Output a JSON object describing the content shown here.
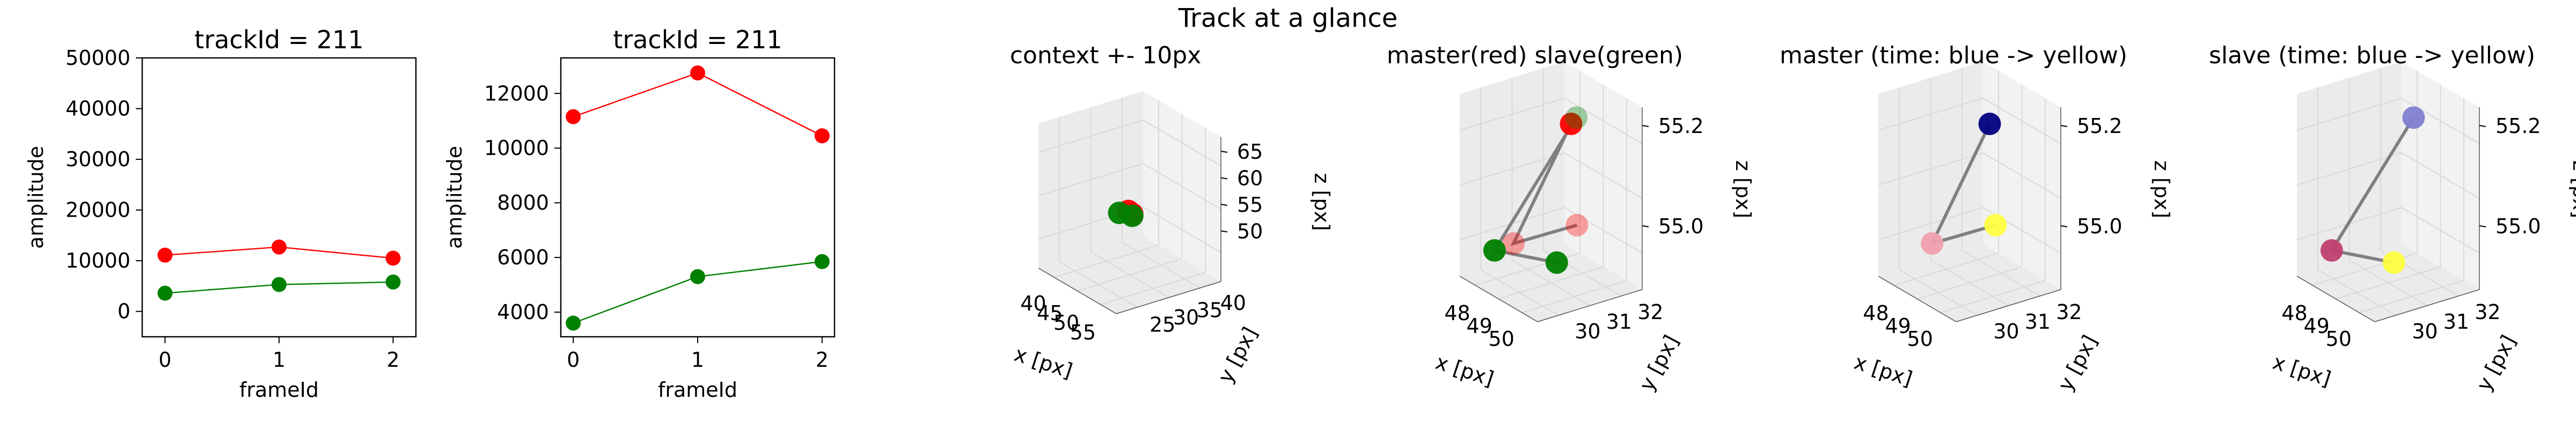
{
  "figure": {
    "suptitle": "Track at a glance"
  },
  "colors": {
    "master": "#ff0000",
    "slave": "#008000",
    "connector": "#808080",
    "pane": "#f2f2f2",
    "pane_side": "#ebebeb",
    "grid": "#d9d9d9",
    "time_start": "#00007f",
    "time_end": "#ffff3f"
  },
  "chart_data": [
    {
      "type": "line",
      "title": "trackId = 211",
      "xlabel": "frameId",
      "ylabel": "amplitude",
      "x": [
        0,
        1,
        2
      ],
      "xlim": [
        -0.2,
        2.2
      ],
      "ylim": [
        -5000,
        50000
      ],
      "yticks": [
        0,
        10000,
        20000,
        30000,
        40000,
        50000
      ],
      "xticks": [
        0,
        1,
        2
      ],
      "series": [
        {
          "color": "#ff0000",
          "values": [
            11100,
            12700,
            10500
          ]
        },
        {
          "color": "#008000",
          "values": [
            3600,
            5300,
            5800
          ]
        }
      ],
      "grid": false
    },
    {
      "type": "line",
      "title": "trackId = 211",
      "xlabel": "frameId",
      "ylabel": "amplitude",
      "x": [
        0,
        1,
        2
      ],
      "xlim": [
        -0.1,
        2.1
      ],
      "ylim": [
        3100,
        13300
      ],
      "yticks": [
        4000,
        6000,
        8000,
        10000,
        12000
      ],
      "xticks": [
        0,
        1,
        2
      ],
      "series": [
        {
          "color": "#ff0000",
          "values": [
            11150,
            12750,
            10450
          ]
        },
        {
          "color": "#008000",
          "values": [
            3600,
            5300,
            5850
          ]
        }
      ],
      "grid": false
    },
    {
      "type": "scatter3d",
      "title": "context +- 10px",
      "xlabel": "x [px]",
      "ylabel": "y [px]",
      "zlabel": "z [px]",
      "xticks": [
        "40",
        "45",
        "50",
        "55"
      ],
      "yticks": [
        "25",
        "30",
        "35",
        "40"
      ],
      "zticks": [
        "50",
        "55",
        "60",
        "65"
      ],
      "points": [
        {
          "x": 49,
          "y": 31,
          "z": 55.3,
          "color": "#ff0000"
        },
        {
          "x": 50,
          "y": 31,
          "z": 55.2,
          "color": "#ff0000"
        },
        {
          "x": 48,
          "y": 30,
          "z": 54.9,
          "color": "#008000"
        },
        {
          "x": 50,
          "y": 31,
          "z": 54.9,
          "color": "#008000"
        }
      ]
    },
    {
      "type": "scatter3d",
      "title": "master(red) slave(green)",
      "xlabel": "x [px]",
      "ylabel": "y [px]",
      "zlabel": "z [px]",
      "xticks": [
        "48",
        "49",
        "50"
      ],
      "yticks": [
        "30",
        "31",
        "32"
      ],
      "zticks": [
        "55.0",
        "55.2"
      ],
      "points": [
        {
          "x": 49.0,
          "y": 32.0,
          "z": 55.3,
          "color": "#ff0000"
        },
        {
          "x": 49.2,
          "y": 30.2,
          "z": 54.9,
          "color": "#ff0000"
        },
        {
          "x": 50.3,
          "y": 31.2,
          "z": 55.0,
          "color": "#ff0000"
        },
        {
          "x": 48.8,
          "y": 32.3,
          "z": 55.3,
          "color": "#008000"
        },
        {
          "x": 48.2,
          "y": 30.4,
          "z": 54.8,
          "color": "#008000"
        },
        {
          "x": 50.6,
          "y": 30.4,
          "z": 54.9,
          "color": "#008000"
        }
      ]
    },
    {
      "type": "scatter3d",
      "title": "master (time: blue -> yellow)",
      "xlabel": "x [px]",
      "ylabel": "y [px]",
      "zlabel": "z [px]",
      "xticks": [
        "48",
        "49",
        "50"
      ],
      "yticks": [
        "30",
        "31",
        "32"
      ],
      "zticks": [
        "55.0",
        "55.2"
      ],
      "points": [
        {
          "x": 49.0,
          "y": 32.0,
          "z": 55.3,
          "color": "#00007f"
        },
        {
          "x": 49.2,
          "y": 30.2,
          "z": 54.9,
          "color": "#f0a0b0"
        },
        {
          "x": 50.3,
          "y": 31.2,
          "z": 55.0,
          "color": "#ffff3f"
        }
      ]
    },
    {
      "type": "scatter3d",
      "title": "slave (time: blue -> yellow)",
      "xlabel": "x [px]",
      "ylabel": "y [px]",
      "zlabel": "z [px]",
      "xticks": [
        "48",
        "49",
        "50"
      ],
      "yticks": [
        "30",
        "31",
        "32"
      ],
      "zticks": [
        "55.0",
        "55.2"
      ],
      "points": [
        {
          "x": 48.8,
          "y": 32.3,
          "z": 55.3,
          "color": "#8080d0"
        },
        {
          "x": 48.2,
          "y": 30.4,
          "z": 54.8,
          "color": "#c04070"
        },
        {
          "x": 50.6,
          "y": 30.4,
          "z": 54.9,
          "color": "#ffff3f"
        }
      ]
    }
  ]
}
